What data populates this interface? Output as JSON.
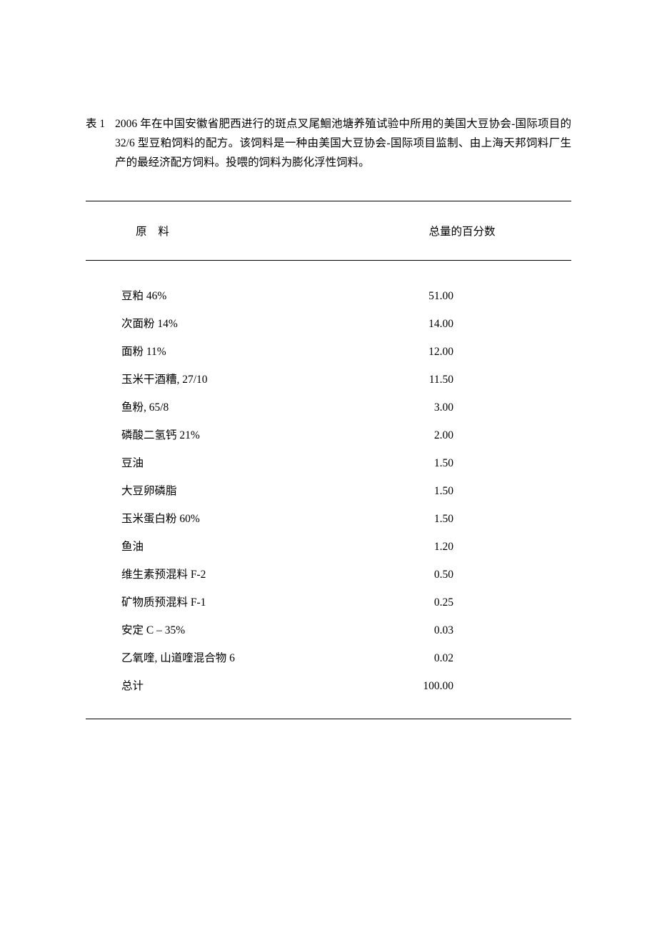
{
  "caption": {
    "label": "表 1",
    "text": "2006 年在中国安徽省肥西进行的斑点叉尾鮰池塘养殖试验中所用的美国大豆协会-国际项目的 32/6 型豆粕饲料的配方。该饲料是一种由美国大豆协会-国际项目监制、由上海天邦饲料厂生产的最经济配方饲料。投喂的饲料为膨化浮性饲料。"
  },
  "table": {
    "header": {
      "col1": "原 料",
      "col2": "总量的百分数"
    },
    "rows": [
      {
        "ingredient": "豆粕 46%",
        "value": "51.00"
      },
      {
        "ingredient": "次面粉 14%",
        "value": "14.00"
      },
      {
        "ingredient": "面粉 11%",
        "value": "12.00"
      },
      {
        "ingredient": "玉米干酒糟, 27/10",
        "value": "11.50"
      },
      {
        "ingredient": "鱼粉, 65/8",
        "value": "3.00"
      },
      {
        "ingredient": "磷酸二氢钙 21%",
        "value": "2.00"
      },
      {
        "ingredient": "豆油",
        "value": "1.50"
      },
      {
        "ingredient": "大豆卵磷脂",
        "value": "1.50"
      },
      {
        "ingredient": "玉米蛋白粉 60%",
        "value": "1.50"
      },
      {
        "ingredient": "鱼油",
        "value": "1.20"
      },
      {
        "ingredient": "维生素预混料 F-2",
        "value": "0.50"
      },
      {
        "ingredient": "矿物质预混料 F-1",
        "value": "0.25"
      },
      {
        "ingredient": "安定 C – 35%",
        "value": "0.03"
      },
      {
        "ingredient": "乙氧喹, 山道喹混合物 6",
        "value": "0.02"
      },
      {
        "ingredient": "总计",
        "value": "100.00"
      }
    ]
  },
  "style": {
    "page_bg": "#ffffff",
    "text_color": "#000000",
    "rule_color": "#000000",
    "font_size_pt": 15.5,
    "line_height": 1.75
  }
}
